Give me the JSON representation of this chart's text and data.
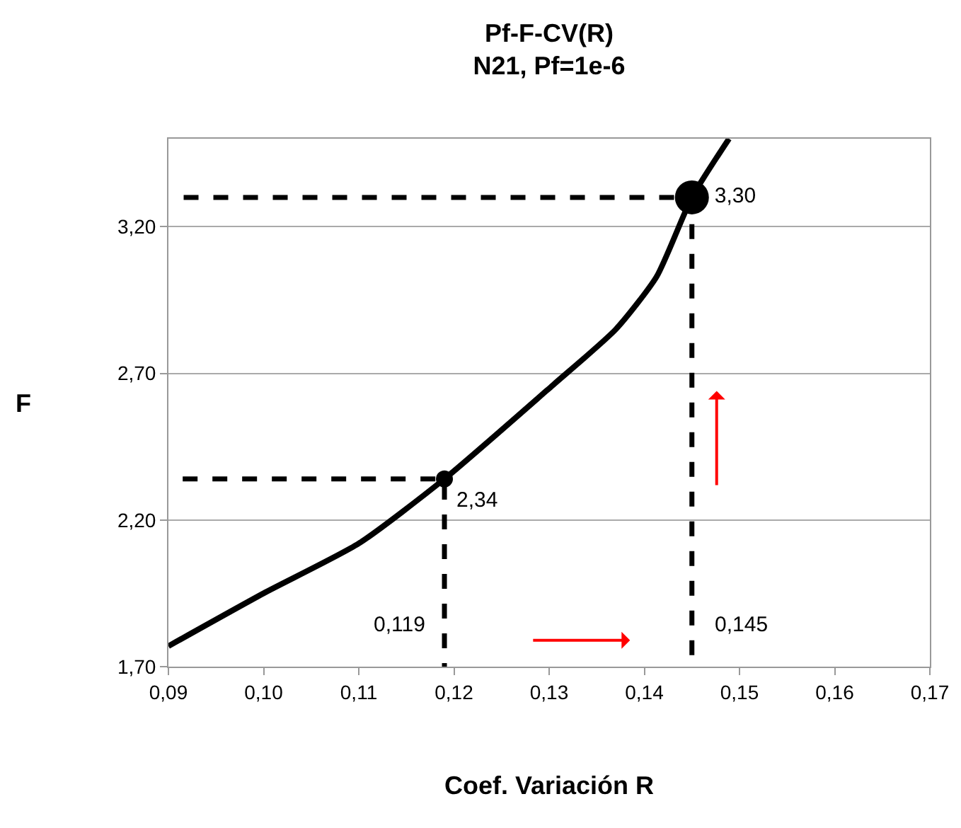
{
  "chart_data": {
    "type": "line",
    "title": "Pf-F-CV(R)\nN21, Pf=1e-6",
    "xlabel": "Coef. Variación R",
    "ylabel": "F",
    "xlim": [
      0.09,
      0.17
    ],
    "xticks": [
      {
        "value": 0.09,
        "label": "0,09"
      },
      {
        "value": 0.1,
        "label": "0,10"
      },
      {
        "value": 0.11,
        "label": "0,11"
      },
      {
        "value": 0.12,
        "label": "0,12"
      },
      {
        "value": 0.13,
        "label": "0,13"
      },
      {
        "value": 0.14,
        "label": "0,14"
      },
      {
        "value": 0.15,
        "label": "0,15"
      },
      {
        "value": 0.16,
        "label": "0,16"
      },
      {
        "value": 0.17,
        "label": "0,17"
      }
    ],
    "ylim": [
      1.7,
      3.5
    ],
    "yticks": [
      {
        "value": 1.7,
        "label": "1,70"
      },
      {
        "value": 2.2,
        "label": "2,20"
      },
      {
        "value": 2.7,
        "label": "2,70"
      },
      {
        "value": 3.2,
        "label": "3,20"
      }
    ],
    "grid": "y",
    "series": [
      {
        "color": "#000000",
        "line_style": "solid",
        "marker": "none",
        "x": [
          0.09,
          0.1,
          0.11,
          0.119,
          0.1304,
          0.137,
          0.1413,
          0.145,
          0.1489
        ],
        "values": [
          1.77,
          1.95,
          2.12,
          2.34,
          2.66,
          2.85,
          3.03,
          3.3,
          3.5
        ]
      },
      {
        "color": "#000000",
        "line_style": "dashed",
        "marker": "none",
        "x": [
          0.0916,
          0.145,
          0.145
        ],
        "values": [
          3.3,
          3.3,
          1.7
        ]
      },
      {
        "color": "#000000",
        "line_style": "dashed",
        "marker": "none",
        "x": [
          0.0915,
          0.119,
          0.119
        ],
        "values": [
          2.34,
          2.34,
          1.7
        ]
      },
      {
        "type": "scatter",
        "color": "#000000",
        "marker": "circle",
        "x": [
          0.119
        ],
        "values": [
          2.34
        ],
        "value_labels": [
          "2,34"
        ]
      },
      {
        "type": "scatter",
        "color": "#000000",
        "marker": "circle",
        "x": [
          0.145
        ],
        "values": [
          3.3
        ],
        "value_labels": [
          "3,30"
        ]
      }
    ],
    "annotations": [
      {
        "text": "0,119",
        "x": 0.119,
        "y": 1.79
      },
      {
        "text": "0,145",
        "x": 0.145,
        "y": 1.79
      }
    ]
  }
}
